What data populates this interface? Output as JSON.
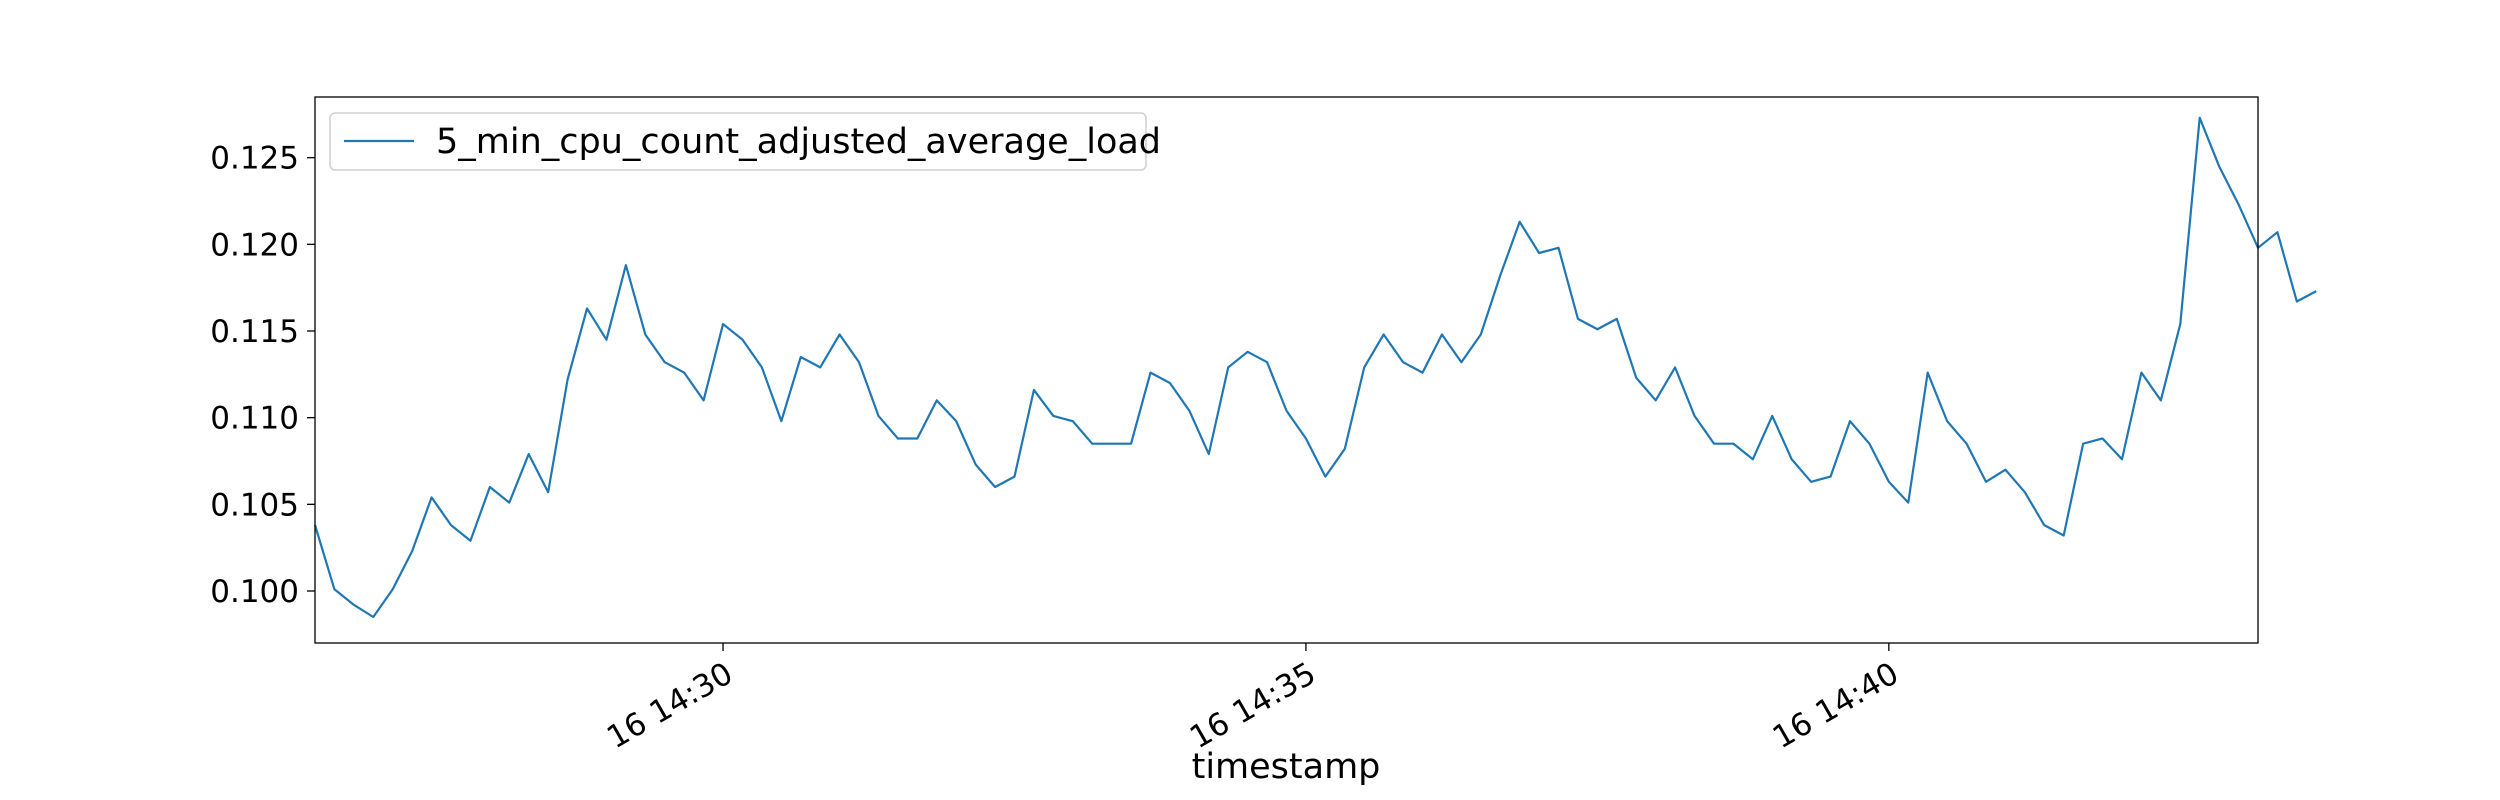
{
  "chart_data": {
    "type": "line",
    "title": "",
    "xlabel": "timestamp",
    "ylabel": "",
    "x_range": [
      "16 14:26:30",
      "16 14:43:10"
    ],
    "x_step_seconds": 10,
    "ylim": [
      0.097,
      0.1285
    ],
    "y_ticks": [
      0.1,
      0.105,
      0.11,
      0.115,
      0.12,
      0.125
    ],
    "y_tick_labels": [
      "0.100",
      "0.105",
      "0.110",
      "0.115",
      "0.120",
      "0.125"
    ],
    "x_tick_times": [
      "16 14:30:00",
      "16 14:35:00",
      "16 14:40:00"
    ],
    "x_tick_labels": [
      "16 14:30",
      "16 14:35",
      "16 14:40"
    ],
    "grid": false,
    "legend_position": "top-left",
    "colors": {
      "series": "#1f77b4"
    },
    "series": [
      {
        "name": "5_min_cpu_count_adjusted_average_load",
        "values": [
          0.1038,
          0.1001,
          0.0992,
          0.0985,
          0.1001,
          0.1023,
          0.1054,
          0.1038,
          0.1029,
          0.106,
          0.1051,
          0.1079,
          0.1057,
          0.1122,
          0.1163,
          0.1145,
          0.1188,
          0.1148,
          0.1132,
          0.1126,
          0.111,
          0.1154,
          0.1145,
          0.1129,
          0.1098,
          0.1135,
          0.1129,
          0.1148,
          0.1132,
          0.1101,
          0.1088,
          0.1088,
          0.111,
          0.1098,
          0.1073,
          0.106,
          0.1066,
          0.1116,
          0.1101,
          0.1098,
          0.1085,
          0.1085,
          0.1085,
          0.1126,
          0.112,
          0.1104,
          0.1079,
          0.1129,
          0.1138,
          0.1132,
          0.1104,
          0.1088,
          0.1066,
          0.1082,
          0.1129,
          0.1148,
          0.1132,
          0.1126,
          0.1148,
          0.1132,
          0.1148,
          0.1182,
          0.1213,
          0.1195,
          0.1198,
          0.1157,
          0.1151,
          0.1157,
          0.1123,
          0.111,
          0.1129,
          0.1101,
          0.1085,
          0.1085,
          0.1076,
          0.1101,
          0.1076,
          0.1063,
          0.1066,
          0.1098,
          0.1085,
          0.1063,
          0.1051,
          0.1126,
          0.1098,
          0.1085,
          0.1063,
          0.107,
          0.1057,
          0.1038,
          0.1032,
          0.1085,
          0.1088,
          0.1076,
          0.1126,
          0.111,
          0.1154,
          0.1273,
          0.1245,
          0.1223,
          0.1198,
          0.1207,
          0.1167,
          0.1173
        ]
      }
    ]
  }
}
